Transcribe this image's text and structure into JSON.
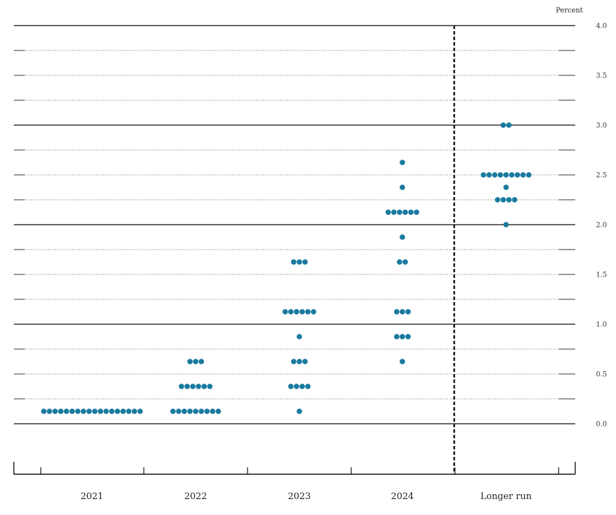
{
  "chart_data": {
    "type": "scatter",
    "unit_label": "Percent",
    "ylim": [
      0,
      4
    ],
    "y_ticks": [
      "0.0",
      "0.5",
      "1.0",
      "1.5",
      "2.0",
      "2.5",
      "3.0",
      "3.5",
      "4.0"
    ],
    "y_tick_values": [
      0,
      0.5,
      1.0,
      1.5,
      2.0,
      2.5,
      3.0,
      3.5,
      4.0
    ],
    "categories": [
      "2021",
      "2022",
      "2023",
      "2024",
      "Longer run"
    ],
    "grid": true,
    "dot_color": "#1a7aa0",
    "groups": [
      {
        "category": "2021",
        "points": [
          {
            "y": 0.125,
            "count": 18
          }
        ]
      },
      {
        "category": "2022",
        "points": [
          {
            "y": 0.125,
            "count": 9
          },
          {
            "y": 0.375,
            "count": 6
          },
          {
            "y": 0.625,
            "count": 3
          }
        ]
      },
      {
        "category": "2023",
        "points": [
          {
            "y": 0.125,
            "count": 1
          },
          {
            "y": 0.375,
            "count": 4
          },
          {
            "y": 0.625,
            "count": 3
          },
          {
            "y": 0.875,
            "count": 1
          },
          {
            "y": 1.125,
            "count": 6
          },
          {
            "y": 1.625,
            "count": 3
          }
        ]
      },
      {
        "category": "2024",
        "points": [
          {
            "y": 0.625,
            "count": 1
          },
          {
            "y": 0.875,
            "count": 3
          },
          {
            "y": 1.125,
            "count": 3
          },
          {
            "y": 1.625,
            "count": 2
          },
          {
            "y": 1.875,
            "count": 1
          },
          {
            "y": 2.125,
            "count": 6
          },
          {
            "y": 2.375,
            "count": 1
          },
          {
            "y": 2.625,
            "count": 1
          }
        ]
      },
      {
        "category": "Longer run",
        "points": [
          {
            "y": 2.0,
            "count": 1
          },
          {
            "y": 2.25,
            "count": 4
          },
          {
            "y": 2.375,
            "count": 1
          },
          {
            "y": 2.5,
            "count": 9
          },
          {
            "y": 3.0,
            "count": 2
          }
        ]
      }
    ]
  }
}
